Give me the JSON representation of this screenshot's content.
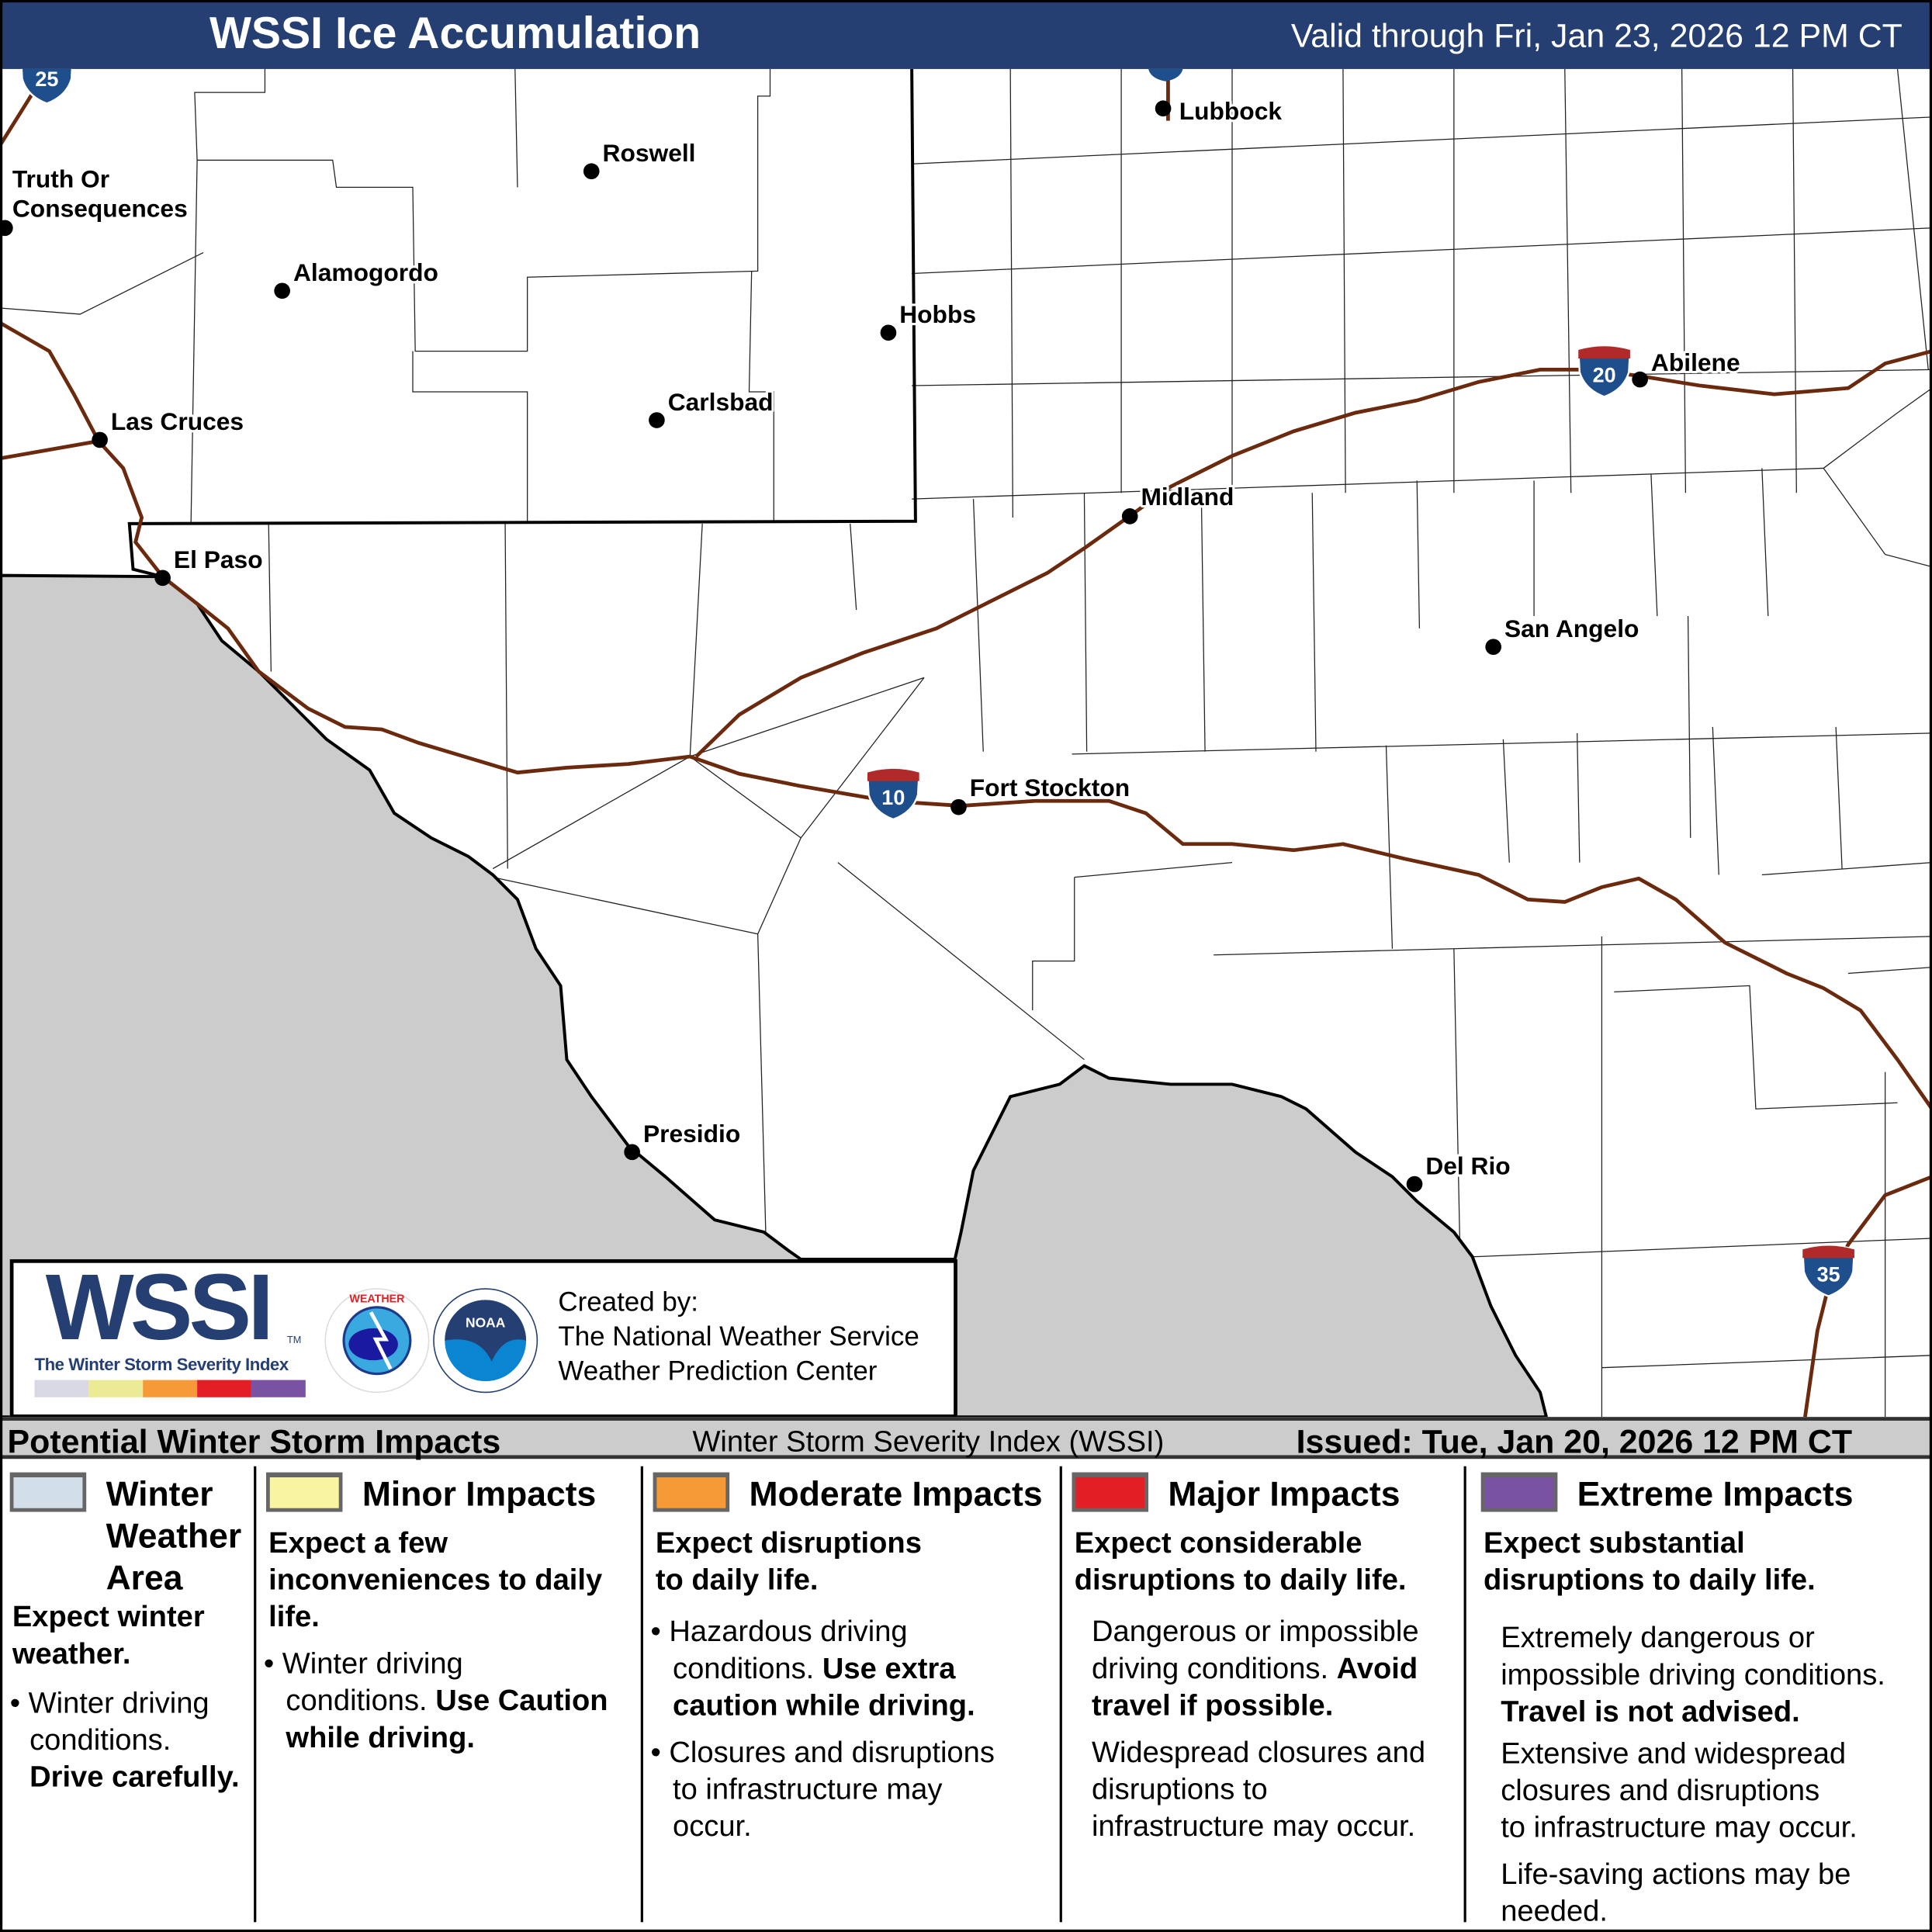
{
  "header": {
    "title": "WSSI Ice Accumulation",
    "valid": "Valid through Fri, Jan 23, 2026 12 PM CT"
  },
  "map": {
    "colors": {
      "mexico": "#cccccc",
      "interstate": "#6b2a0e",
      "shield_blue": "#1f4e8c",
      "shield_red": "#b02a2a"
    },
    "cities": [
      {
        "name": "Lubbock"
      },
      {
        "name": "Roswell"
      },
      {
        "name": "Truth Or"
      },
      {
        "name": "Consequences"
      },
      {
        "name": "Alamogordo"
      },
      {
        "name": "Hobbs"
      },
      {
        "name": "Abilene"
      },
      {
        "name": "Carlsbad"
      },
      {
        "name": "Las Cruces"
      },
      {
        "name": "Midland"
      },
      {
        "name": "El Paso"
      },
      {
        "name": "San Angelo"
      },
      {
        "name": "Fort Stockton"
      },
      {
        "name": "Presidio"
      },
      {
        "name": "Del Rio"
      }
    ],
    "shields": [
      "25",
      "20",
      "10",
      "35"
    ]
  },
  "logo": {
    "wssi": "WSSI",
    "tm": "TM",
    "subtitle": "The Winter Storm Severity Index",
    "created_by": "Created by:",
    "org1": "The National Weather Service",
    "org2": "Weather Prediction Center",
    "nws": "NATIONAL WEATHER SERVICE",
    "noaa": "NOAA",
    "bar_colors": [
      "#d9d9e6",
      "#ebeb96",
      "#f59a36",
      "#e31f26",
      "#7a52a3"
    ]
  },
  "legend": {
    "title": "Potential Winter Storm Impacts",
    "index": "Winter Storm Severity Index (WSSI)",
    "issued": "Issued: Tue, Jan 20, 2026 12 PM CT",
    "categories": [
      {
        "color": "#d3dfe8",
        "t1": "Winter",
        "t2": "Weather",
        "t3": "Area",
        "b1": "Expect winter",
        "b2": "weather.",
        "n1": "Winter driving",
        "n2": "conditions.",
        "n3": "Drive carefully."
      },
      {
        "color": "#f8f4a2",
        "t1": "Minor Impacts",
        "b1": "Expect a few",
        "b2": "inconveniences to daily",
        "b3": "life.",
        "n1": "Winter driving",
        "n2": "conditions.",
        "n3": "Use Caution",
        "n4": "while driving."
      },
      {
        "color": "#f59a36",
        "t1": "Moderate Impacts",
        "b1": "Expect disruptions",
        "b2": "to daily life.",
        "n1": "Hazardous driving",
        "n2": "conditions.",
        "n3": "Use extra",
        "n4": "caution while driving.",
        "n5": "Closures and disruptions",
        "n6": "to infrastructure may",
        "n7": "occur."
      },
      {
        "color": "#e31f26",
        "t1": "Major Impacts",
        "b1": "Expect considerable",
        "b2": "disruptions to daily life.",
        "n1": "Dangerous or impossible",
        "n2": "driving conditions.",
        "n3": "Avoid",
        "n4": "travel if possible.",
        "n5": "Widespread closures and",
        "n6": "disruptions to",
        "n7": "infrastructure may occur."
      },
      {
        "color": "#7a52a3",
        "t1": "Extreme Impacts",
        "b1": "Expect substantial",
        "b2": "disruptions to daily life.",
        "n1": "Extremely dangerous or",
        "n2": "impossible driving conditions.",
        "n3": "Travel is not advised.",
        "n4": "Extensive and widespread",
        "n5": "closures and disruptions",
        "n6": "to infrastructure may occur.",
        "n7": "Life-saving actions may be",
        "n8": "needed."
      }
    ]
  }
}
